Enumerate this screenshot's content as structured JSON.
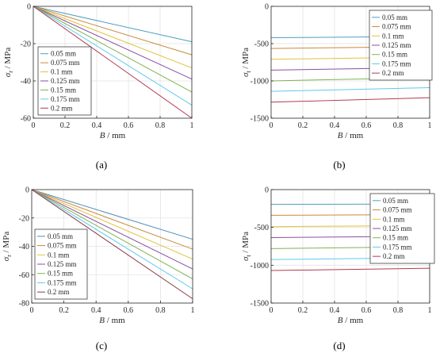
{
  "colors": {
    "axis": "#262626",
    "grid": "#e3e3e3",
    "series": [
      "#4e9ec4",
      "#c98a3d",
      "#e2c23c",
      "#8a4fa2",
      "#7fb451",
      "#5ec9ee",
      "#b33a53"
    ],
    "series_c": [
      "#4e8cbf",
      "#c98a3d",
      "#e2c23c",
      "#8a4fa2",
      "#7fb451",
      "#5ec9ee",
      "#8a3a45"
    ]
  },
  "chart_data": [
    {
      "type": "line",
      "panel_label": "(a)",
      "xlabel_sym": "B",
      "xlabel_unit": " / mm",
      "ylabel_sym": "σ",
      "ylabel_sub": "r",
      "ylabel_unit": " / MPa",
      "xlim": [
        0,
        1
      ],
      "ylim": [
        -60,
        0
      ],
      "xticks": [
        "0",
        "0.2",
        "0.4",
        "0.6",
        "0.8",
        "1"
      ],
      "yticks": [
        "0",
        "-20",
        "-40",
        "-60"
      ],
      "ytick_values": [
        0,
        -20,
        -40,
        -60
      ],
      "grid": true,
      "legend_position": "bottom-left",
      "x": [
        0,
        1
      ],
      "series": [
        {
          "name": "0.05 mm",
          "values": [
            0,
            -19
          ]
        },
        {
          "name": "0.075 mm",
          "values": [
            0,
            -26
          ]
        },
        {
          "name": "0.1 mm",
          "values": [
            0,
            -33
          ]
        },
        {
          "name": "0.125 mm",
          "values": [
            0,
            -39
          ]
        },
        {
          "name": "0.15 mm",
          "values": [
            0,
            -46
          ]
        },
        {
          "name": "0.175 mm",
          "values": [
            0,
            -53
          ]
        },
        {
          "name": "0.2 mm",
          "values": [
            0,
            -60
          ]
        }
      ]
    },
    {
      "type": "line",
      "panel_label": "(b)",
      "xlabel_sym": "B",
      "xlabel_unit": " / mm",
      "ylabel_sym": "σ",
      "ylabel_sub": "t",
      "ylabel_unit": " / MPa",
      "xlim": [
        0,
        1
      ],
      "ylim": [
        -1500,
        0
      ],
      "xticks": [
        "0",
        "0.2",
        "0.4",
        "0.6",
        "0.8",
        "1"
      ],
      "yticks": [
        "0",
        "-500",
        "-1000",
        "-1500"
      ],
      "ytick_values": [
        0,
        -500,
        -1000,
        -1500
      ],
      "grid": true,
      "legend_position": "top-right",
      "x": [
        0,
        1
      ],
      "series": [
        {
          "name": "0.05 mm",
          "values": [
            -420,
            -405
          ]
        },
        {
          "name": "0.075 mm",
          "values": [
            -565,
            -540
          ]
        },
        {
          "name": "0.1 mm",
          "values": [
            -710,
            -680
          ]
        },
        {
          "name": "0.125 mm",
          "values": [
            -855,
            -820
          ]
        },
        {
          "name": "0.15 mm",
          "values": [
            -1000,
            -955
          ]
        },
        {
          "name": "0.175 mm",
          "values": [
            -1140,
            -1090
          ]
        },
        {
          "name": "0.2 mm",
          "values": [
            -1285,
            -1225
          ]
        }
      ]
    },
    {
      "type": "line",
      "panel_label": "(c)",
      "xlabel_sym": "B",
      "xlabel_unit": " / mm",
      "ylabel_sym": "σ",
      "ylabel_sub": "r",
      "ylabel_unit": " / MPa",
      "xlim": [
        0,
        1
      ],
      "ylim": [
        -80,
        0
      ],
      "xticks": [
        "0",
        "0.2",
        "0.4",
        "0.6",
        "0.8",
        "1"
      ],
      "yticks": [
        "0",
        "-20",
        "-40",
        "-60",
        "-80"
      ],
      "ytick_values": [
        0,
        -20,
        -40,
        -60,
        -80
      ],
      "grid": true,
      "legend_position": "bottom-left",
      "x": [
        0,
        1
      ],
      "series": [
        {
          "name": "0.05 mm",
          "values": [
            0,
            -35
          ]
        },
        {
          "name": "0.075 mm",
          "values": [
            0,
            -42
          ]
        },
        {
          "name": "0.1 mm",
          "values": [
            0,
            -49
          ]
        },
        {
          "name": "0.125 mm",
          "values": [
            0,
            -56
          ]
        },
        {
          "name": "0.15 mm",
          "values": [
            0,
            -63
          ]
        },
        {
          "name": "0.175 mm",
          "values": [
            0,
            -70
          ]
        },
        {
          "name": "0.2 mm",
          "values": [
            0,
            -77
          ]
        }
      ]
    },
    {
      "type": "line",
      "panel_label": "(d)",
      "xlabel_sym": "B",
      "xlabel_unit": " / mm",
      "ylabel_sym": "σ",
      "ylabel_sub": "t",
      "ylabel_unit": " / MPa",
      "xlim": [
        0,
        1
      ],
      "ylim": [
        -1500,
        0
      ],
      "xticks": [
        "0",
        "0.2",
        "0.4",
        "0.6",
        "0.8",
        "1"
      ],
      "yticks": [
        "0",
        "-500",
        "-1000",
        "-1500"
      ],
      "ytick_values": [
        0,
        -500,
        -1000,
        -1500
      ],
      "grid": true,
      "legend_position": "top-right",
      "x": [
        0,
        1
      ],
      "series": [
        {
          "name": "0.05 mm",
          "values": [
            -195,
            -190
          ]
        },
        {
          "name": "0.075 mm",
          "values": [
            -340,
            -330
          ]
        },
        {
          "name": "0.1 mm",
          "values": [
            -490,
            -475
          ]
        },
        {
          "name": "0.125 mm",
          "values": [
            -635,
            -615
          ]
        },
        {
          "name": "0.15 mm",
          "values": [
            -780,
            -755
          ]
        },
        {
          "name": "0.175 mm",
          "values": [
            -925,
            -900
          ]
        },
        {
          "name": "0.2 mm",
          "values": [
            -1070,
            -1040
          ]
        }
      ]
    }
  ]
}
